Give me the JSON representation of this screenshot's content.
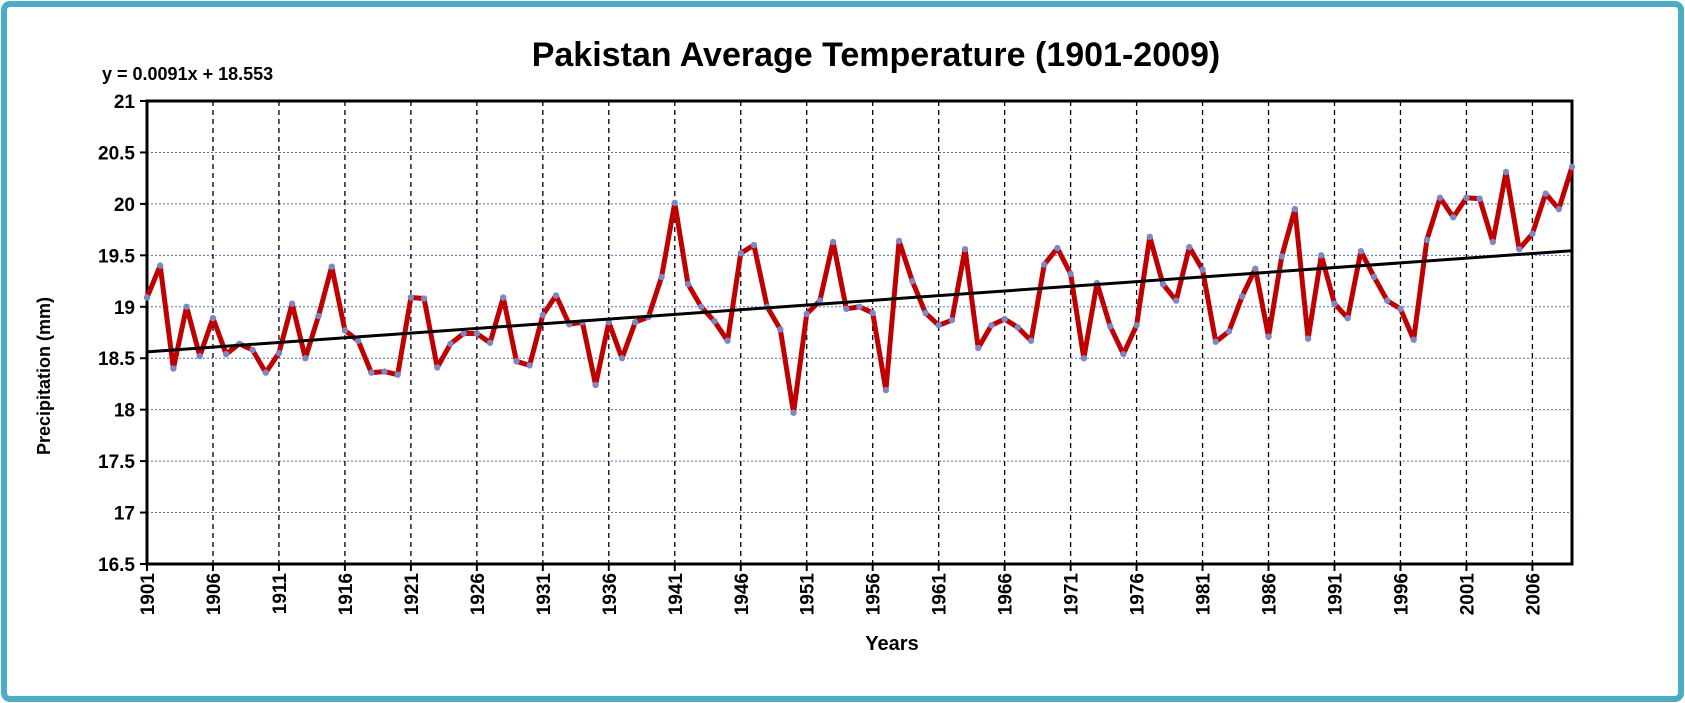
{
  "chart_data": {
    "type": "line",
    "title": "Pakistan Average Temperature (1901-2009)",
    "x_label": "Years",
    "y_label": "Precipitation (mm)",
    "trendline": {
      "slope": 0.0091,
      "intercept": 18.553,
      "label": "y = 0.0091x + 18.553"
    },
    "color": "#c00000",
    "marker_color": "#7f86c4",
    "grid": true,
    "x": [
      1901,
      1902,
      1903,
      1904,
      1905,
      1906,
      1907,
      1908,
      1909,
      1910,
      1911,
      1912,
      1913,
      1914,
      1915,
      1916,
      1917,
      1918,
      1919,
      1920,
      1921,
      1922,
      1923,
      1924,
      1925,
      1926,
      1927,
      1928,
      1929,
      1930,
      1931,
      1932,
      1933,
      1934,
      1935,
      1936,
      1937,
      1938,
      1939,
      1940,
      1941,
      1942,
      1943,
      1944,
      1945,
      1946,
      1947,
      1948,
      1949,
      1950,
      1951,
      1952,
      1953,
      1954,
      1955,
      1956,
      1957,
      1958,
      1959,
      1960,
      1961,
      1962,
      1963,
      1964,
      1965,
      1966,
      1967,
      1968,
      1969,
      1970,
      1971,
      1972,
      1973,
      1974,
      1975,
      1976,
      1977,
      1978,
      1979,
      1980,
      1981,
      1982,
      1983,
      1984,
      1985,
      1986,
      1987,
      1988,
      1989,
      1990,
      1991,
      1992,
      1993,
      1994,
      1995,
      1996,
      1997,
      1998,
      1999,
      2000,
      2001,
      2002,
      2003,
      2004,
      2005,
      2006,
      2007,
      2008,
      2009
    ],
    "values": [
      19.09,
      19.4,
      18.4,
      19.0,
      18.52,
      18.89,
      18.54,
      18.64,
      18.58,
      18.36,
      18.55,
      19.03,
      18.5,
      18.91,
      19.39,
      18.77,
      18.67,
      18.36,
      18.37,
      18.34,
      19.09,
      19.08,
      18.41,
      18.64,
      18.74,
      18.74,
      18.65,
      19.09,
      18.47,
      18.43,
      18.92,
      19.11,
      18.83,
      18.85,
      18.24,
      18.85,
      18.5,
      18.85,
      18.9,
      19.29,
      20.01,
      19.22,
      19.0,
      18.86,
      18.67,
      19.52,
      19.6,
      19.0,
      18.78,
      17.97,
      18.93,
      19.06,
      19.63,
      18.98,
      19.0,
      18.94,
      18.19,
      19.64,
      19.25,
      18.94,
      18.82,
      18.87,
      19.56,
      18.6,
      18.82,
      18.88,
      18.8,
      18.67,
      19.41,
      19.57,
      19.32,
      18.5,
      19.23,
      18.81,
      18.54,
      18.82,
      19.68,
      19.22,
      19.06,
      19.58,
      19.36,
      18.66,
      18.76,
      19.1,
      19.37,
      18.71,
      19.49,
      19.95,
      18.69,
      19.5,
      19.03,
      18.89,
      19.54,
      19.29,
      19.06,
      18.98,
      18.68,
      19.65,
      20.06,
      19.87,
      20.06,
      20.05,
      19.63,
      20.31,
      19.56,
      19.71,
      20.1,
      19.95,
      20.36
    ],
    "xlim": [
      1901,
      2009
    ],
    "xticks": [
      1901,
      1906,
      1911,
      1916,
      1921,
      1926,
      1931,
      1936,
      1941,
      1946,
      1951,
      1956,
      1961,
      1966,
      1971,
      1976,
      1981,
      1986,
      1991,
      1996,
      2001,
      2006
    ],
    "ylim": [
      16.5,
      21
    ],
    "yticks": [
      16.5,
      17,
      17.5,
      18,
      18.5,
      19,
      19.5,
      20,
      20.5,
      21
    ]
  }
}
